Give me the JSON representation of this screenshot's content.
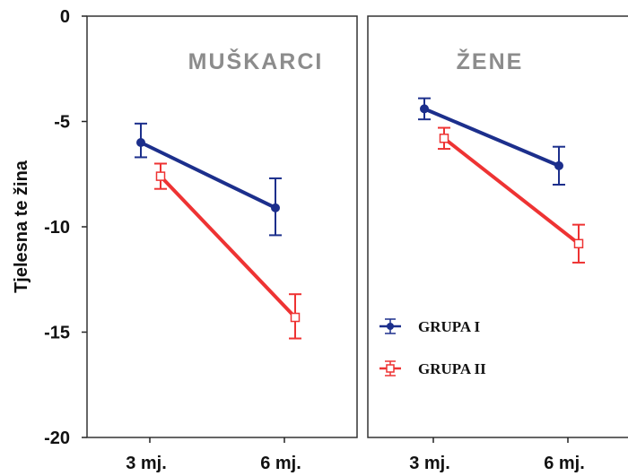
{
  "chart_data": {
    "type": "line",
    "ylabel": "Tjelesna te  žina",
    "ylim": [
      -20,
      0
    ],
    "yticks": [
      0,
      -5,
      -10,
      -15,
      -20
    ],
    "categories": [
      "3 mj.",
      "6 mj."
    ],
    "panels": [
      {
        "title": "MUŠKARCI",
        "series": [
          {
            "name": "GRUPA I",
            "color": "#1c2f8c",
            "marker": "filled-circle",
            "values": [
              -6.0,
              -9.1
            ],
            "err": [
              [
                -5.1,
                -6.7
              ],
              [
                -7.7,
                -10.4
              ]
            ]
          },
          {
            "name": "GRUPA II",
            "color": "#ee3333",
            "marker": "open-square",
            "values": [
              -7.6,
              -14.3
            ],
            "err": [
              [
                -7.0,
                -8.2
              ],
              [
                -13.2,
                -15.3
              ]
            ]
          }
        ]
      },
      {
        "title": "ŽENE",
        "series": [
          {
            "name": "GRUPA I",
            "color": "#1c2f8c",
            "marker": "filled-circle",
            "values": [
              -4.4,
              -7.1
            ],
            "err": [
              [
                -3.9,
                -4.9
              ],
              [
                -6.2,
                -8.0
              ]
            ]
          },
          {
            "name": "GRUPA II",
            "color": "#ee3333",
            "marker": "open-square",
            "values": [
              -5.8,
              -10.8
            ],
            "err": [
              [
                -5.3,
                -6.3
              ],
              [
                -9.9,
                -11.7
              ]
            ]
          }
        ]
      }
    ],
    "legend": {
      "placement": "lower-left of right panel",
      "entries": [
        {
          "label": "GRUPA I",
          "color": "#1c2f8c",
          "marker": "filled-circle"
        },
        {
          "label": "GRUPA II",
          "color": "#ee3333",
          "marker": "open-square"
        }
      ]
    }
  }
}
